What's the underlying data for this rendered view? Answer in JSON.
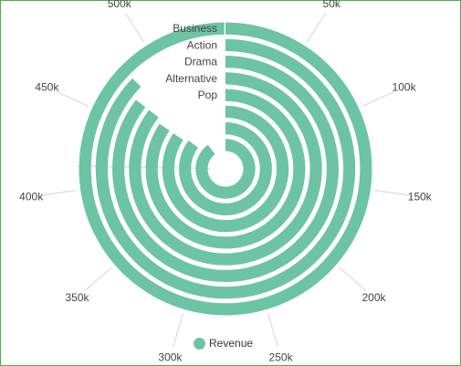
{
  "chart_data": {
    "type": "radial-bar",
    "categories": [
      "Business",
      "Action",
      "Drama",
      "Alternative",
      "Pop",
      "",
      "",
      ""
    ],
    "series": [
      {
        "name": "Revenue",
        "values": [
          590000,
          480000,
          470000,
          470000,
          465000,
          465000,
          470000,
          495000
        ]
      }
    ],
    "axis": {
      "ticks": [
        50000,
        100000,
        150000,
        200000,
        250000,
        300000,
        350000,
        400000,
        450000,
        500000
      ],
      "max": 550000
    },
    "tick_labels": [
      "50k",
      "100k",
      "150k",
      "200k",
      "250k",
      "300k",
      "350k",
      "400k",
      "450k",
      "500k"
    ],
    "colors": {
      "series": "#6cc4a3",
      "grid": "#e1e1e1"
    },
    "legend": {
      "label": "Revenue",
      "position": "bottom-center"
    }
  }
}
